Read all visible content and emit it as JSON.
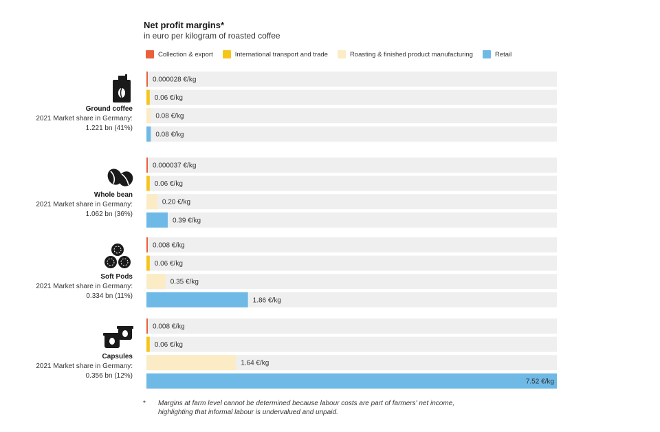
{
  "title": "Net profit margins*",
  "subtitle": "in euro per kilogram of roasted coffee",
  "legend": [
    {
      "name": "Collection & export",
      "color": "#e8603c"
    },
    {
      "name": "International transport and trade",
      "color": "#f5c518"
    },
    {
      "name": "Roasting & finished product manufacturing",
      "color": "#fbecc6"
    },
    {
      "name": "Retail",
      "color": "#6fb9e6"
    }
  ],
  "groups": [
    {
      "name": "Ground coffee",
      "share_line1": "2021 Market share in Germany:",
      "share_line2": "1.221 bn (41%)",
      "icon": "coffee-bag-icon"
    },
    {
      "name": "Whole bean",
      "share_line1": "2021 Market share in Germany:",
      "share_line2": "1.062 bn (36%)",
      "icon": "coffee-beans-icon"
    },
    {
      "name": "Soft Pods",
      "share_line1": "2021 Market share in Germany:",
      "share_line2": "0.334 bn (11%)",
      "icon": "soft-pods-icon"
    },
    {
      "name": "Capsules",
      "share_line1": "2021 Market share in Germany:",
      "share_line2": "0.356 bn (12%)",
      "icon": "capsules-icon"
    }
  ],
  "chart_data": {
    "type": "bar",
    "orientation": "horizontal",
    "title": "Net profit margins*",
    "subtitle": "in euro per kilogram of roasted coffee",
    "unit": "€/kg",
    "xlim": [
      0,
      7.52
    ],
    "categories": [
      "Ground coffee",
      "Whole bean",
      "Soft Pods",
      "Capsules"
    ],
    "series": [
      {
        "name": "Collection & export",
        "values": [
          2.8e-05,
          3.7e-05,
          0.008,
          0.008
        ],
        "labels": [
          "0.000028 €/kg",
          "0.000037 €/kg",
          "0.008 €/kg",
          "0.008 €/kg"
        ]
      },
      {
        "name": "International transport and trade",
        "values": [
          0.06,
          0.06,
          0.06,
          0.06
        ],
        "labels": [
          "0.06 €/kg",
          "0.06 €/kg",
          "0.06 €/kg",
          "0.06 €/kg"
        ]
      },
      {
        "name": "Roasting & finished product manufacturing",
        "values": [
          0.08,
          0.2,
          0.35,
          1.64
        ],
        "labels": [
          "0.08 €/kg",
          "0.20 €/kg",
          "0.35 €/kg",
          "1.64 €/kg"
        ]
      },
      {
        "name": "Retail",
        "values": [
          0.08,
          0.39,
          1.86,
          7.52
        ],
        "labels": [
          "0.08 €/kg",
          "0.39 €/kg",
          "1.86 €/kg",
          "7.52 €/kg"
        ]
      }
    ]
  },
  "footnote": {
    "star": "*",
    "line1": "Margins at farm level cannot be determined because labour costs are part of farmers' net income,",
    "line2": "highlighting that informal labour is undervalued and unpaid."
  }
}
